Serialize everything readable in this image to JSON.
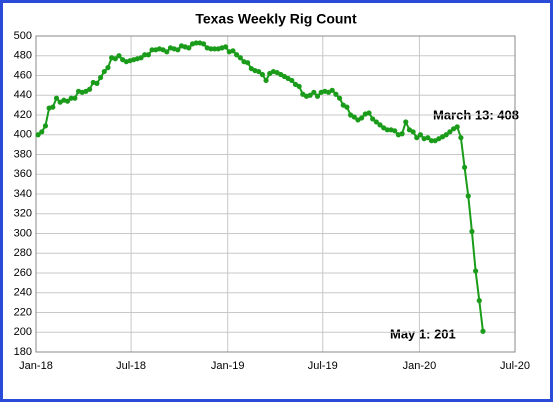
{
  "chart_data": {
    "type": "line",
    "title": "Texas Weekly Rig Count",
    "x": [
      "2018-01-05",
      "2018-01-12",
      "2018-01-19",
      "2018-01-26",
      "2018-02-02",
      "2018-02-09",
      "2018-02-16",
      "2018-02-23",
      "2018-03-02",
      "2018-03-09",
      "2018-03-16",
      "2018-03-23",
      "2018-03-30",
      "2018-04-06",
      "2018-04-13",
      "2018-04-20",
      "2018-04-27",
      "2018-05-04",
      "2018-05-11",
      "2018-05-18",
      "2018-05-25",
      "2018-06-01",
      "2018-06-08",
      "2018-06-15",
      "2018-06-22",
      "2018-06-29",
      "2018-07-06",
      "2018-07-13",
      "2018-07-20",
      "2018-07-27",
      "2018-08-03",
      "2018-08-10",
      "2018-08-17",
      "2018-08-24",
      "2018-08-31",
      "2018-09-07",
      "2018-09-14",
      "2018-09-21",
      "2018-09-28",
      "2018-10-05",
      "2018-10-12",
      "2018-10-19",
      "2018-10-26",
      "2018-11-02",
      "2018-11-09",
      "2018-11-16",
      "2018-11-23",
      "2018-11-30",
      "2018-12-07",
      "2018-12-14",
      "2018-12-21",
      "2018-12-28",
      "2019-01-04",
      "2019-01-11",
      "2019-01-18",
      "2019-01-25",
      "2019-02-01",
      "2019-02-08",
      "2019-02-15",
      "2019-02-22",
      "2019-03-01",
      "2019-03-08",
      "2019-03-15",
      "2019-03-22",
      "2019-03-29",
      "2019-04-05",
      "2019-04-12",
      "2019-04-19",
      "2019-04-26",
      "2019-05-03",
      "2019-05-10",
      "2019-05-17",
      "2019-05-24",
      "2019-05-31",
      "2019-06-07",
      "2019-06-14",
      "2019-06-21",
      "2019-06-28",
      "2019-07-05",
      "2019-07-12",
      "2019-07-19",
      "2019-07-26",
      "2019-08-02",
      "2019-08-09",
      "2019-08-16",
      "2019-08-23",
      "2019-08-30",
      "2019-09-06",
      "2019-09-13",
      "2019-09-20",
      "2019-09-27",
      "2019-10-04",
      "2019-10-11",
      "2019-10-18",
      "2019-10-25",
      "2019-11-01",
      "2019-11-08",
      "2019-11-15",
      "2019-11-22",
      "2019-11-29",
      "2019-12-06",
      "2019-12-13",
      "2019-12-20",
      "2019-12-27",
      "2020-01-03",
      "2020-01-10",
      "2020-01-17",
      "2020-01-24",
      "2020-01-31",
      "2020-02-07",
      "2020-02-14",
      "2020-02-21",
      "2020-02-28",
      "2020-03-06",
      "2020-03-13",
      "2020-03-20",
      "2020-03-27",
      "2020-04-03",
      "2020-04-10",
      "2020-04-17",
      "2020-04-24",
      "2020-05-01"
    ],
    "values": [
      400,
      403,
      409,
      427,
      428,
      437,
      433,
      435,
      434,
      437,
      437,
      444,
      443,
      444,
      446,
      453,
      452,
      458,
      464,
      468,
      478,
      477,
      480,
      476,
      474,
      475,
      476,
      477,
      478,
      481,
      481,
      486,
      486,
      487,
      486,
      484,
      488,
      487,
      486,
      490,
      489,
      488,
      492,
      493,
      493,
      492,
      488,
      487,
      487,
      487,
      488,
      489,
      484,
      485,
      481,
      478,
      474,
      473,
      467,
      465,
      464,
      461,
      455,
      462,
      464,
      463,
      461,
      459,
      457,
      455,
      451,
      449,
      441,
      439,
      440,
      443,
      439,
      443,
      444,
      443,
      445,
      441,
      437,
      430,
      428,
      420,
      418,
      415,
      417,
      421,
      422,
      416,
      413,
      410,
      407,
      405,
      405,
      404,
      400,
      401,
      413,
      405,
      403,
      397,
      400,
      396,
      397,
      394,
      394,
      396,
      398,
      400,
      403,
      406,
      408,
      397,
      367,
      338,
      302,
      262,
      232,
      201
    ],
    "color": "#1a9c1a",
    "xlim": [
      "2018-01-01",
      "2020-07-01"
    ],
    "xticks": [
      {
        "value": "2018-01-01",
        "label": "Jan-18"
      },
      {
        "value": "2018-07-01",
        "label": "Jul-18"
      },
      {
        "value": "2019-01-01",
        "label": "Jan-19"
      },
      {
        "value": "2019-07-01",
        "label": "Jul-19"
      },
      {
        "value": "2020-01-01",
        "label": "Jan-20"
      },
      {
        "value": "2020-07-01",
        "label": "Jul-20"
      }
    ],
    "ylim": [
      180,
      500
    ],
    "yticks": [
      180,
      200,
      220,
      240,
      260,
      280,
      300,
      320,
      340,
      360,
      380,
      400,
      420,
      440,
      460,
      480,
      500
    ],
    "grid": true,
    "annotations": [
      {
        "text": "March 13: 408"
      },
      {
        "text": "May 1: 201"
      }
    ]
  }
}
